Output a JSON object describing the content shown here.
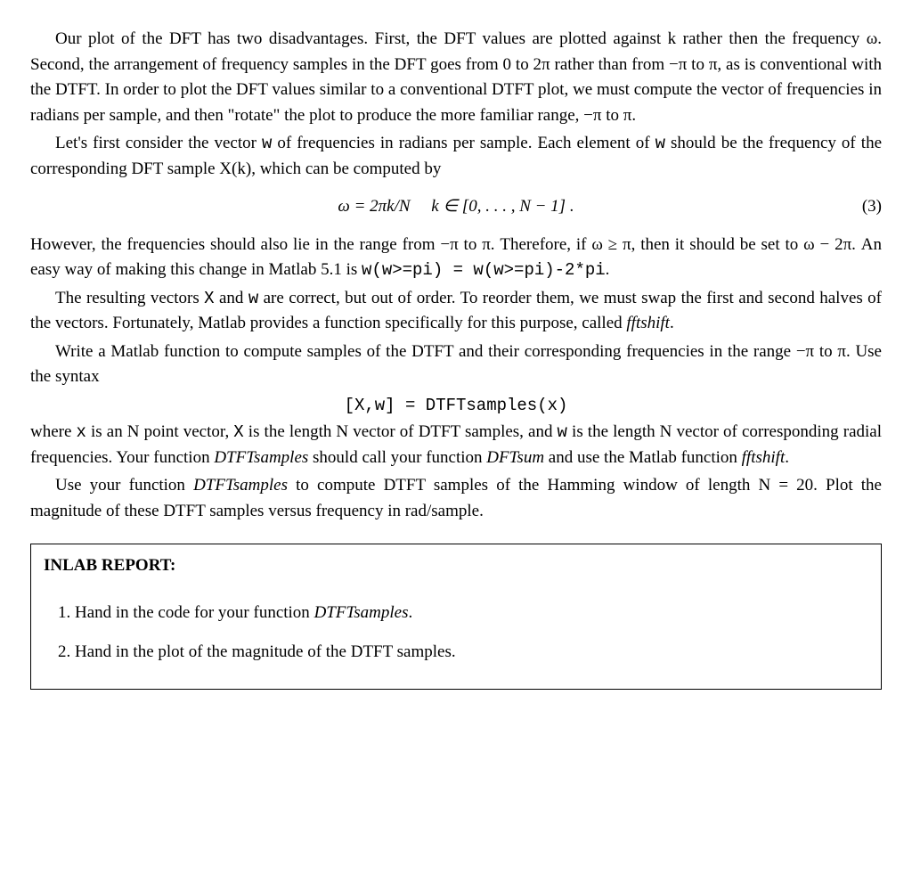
{
  "para1": "Our plot of the DFT has two disadvantages. First, the DFT values are plotted against k rather then the frequency ω. Second, the arrangement of frequency samples in the DFT goes from 0 to 2π rather than from −π to π, as is conventional with the DTFT. In order to plot the DFT values similar to a conventional DTFT plot, we must compute the vector of frequencies in radians per sample, and then \"rotate\" the plot to produce the more familiar range, −π to π.",
  "para2_a": "Let's first consider the vector ",
  "para2_code1": "w",
  "para2_b": " of frequencies in radians per sample. Each element of ",
  "para2_code2": "w",
  "para2_c": " should be the frequency of the corresponding DFT sample X(k), which can be computed by",
  "equation": "ω = 2πk/N     k ∈ [0, . . . , N − 1] .",
  "eq_num": "(3)",
  "para3_a": "However, the frequencies should also lie in the range from −π to π. Therefore, if ω ≥ π, then it should be set to ω − 2π. An easy way of making this change in Matlab 5.1 is ",
  "para3_code": "w(w>=pi) = w(w>=pi)-2*pi",
  "para3_b": ".",
  "para4_a": "The resulting vectors ",
  "para4_code1": "X",
  "para4_b": " and ",
  "para4_code2": "w",
  "para4_c": " are correct, but out of order. To reorder them, we must swap the first and second halves of the vectors. Fortunately, Matlab provides a function specifically for this purpose, called ",
  "para4_italic": "fftshift",
  "para4_d": ".",
  "para5": "Write a Matlab function to compute samples of the DTFT and their corresponding frequencies in the range −π to π. Use the syntax",
  "code_line": "[X,w] = DTFTsamples(x)",
  "para6_a": "where ",
  "para6_code1": "x",
  "para6_b": " is an N point vector, ",
  "para6_code2": "X",
  "para6_c": " is the length N vector of DTFT samples, and ",
  "para6_code3": "w",
  "para6_d": " is the length N vector of corresponding radial frequencies. Your function ",
  "para6_italic1": "DTFTsamples",
  "para6_e": " should call your function ",
  "para6_italic2": "DFTsum",
  "para6_f": " and use the Matlab function ",
  "para6_italic3": "fftshift",
  "para6_g": ".",
  "para7_a": "Use your function ",
  "para7_italic": "DTFTsamples",
  "para7_b": " to compute DTFT samples of the Hamming window of length N = 20. Plot the magnitude of these DTFT samples versus frequency in rad/sample.",
  "report_title": "INLAB REPORT:",
  "report_item1_a": "1. Hand in the code for your function ",
  "report_item1_italic": "DTFTsamples",
  "report_item1_b": ".",
  "report_item2": "2. Hand in the plot of the magnitude of the DTFT samples."
}
